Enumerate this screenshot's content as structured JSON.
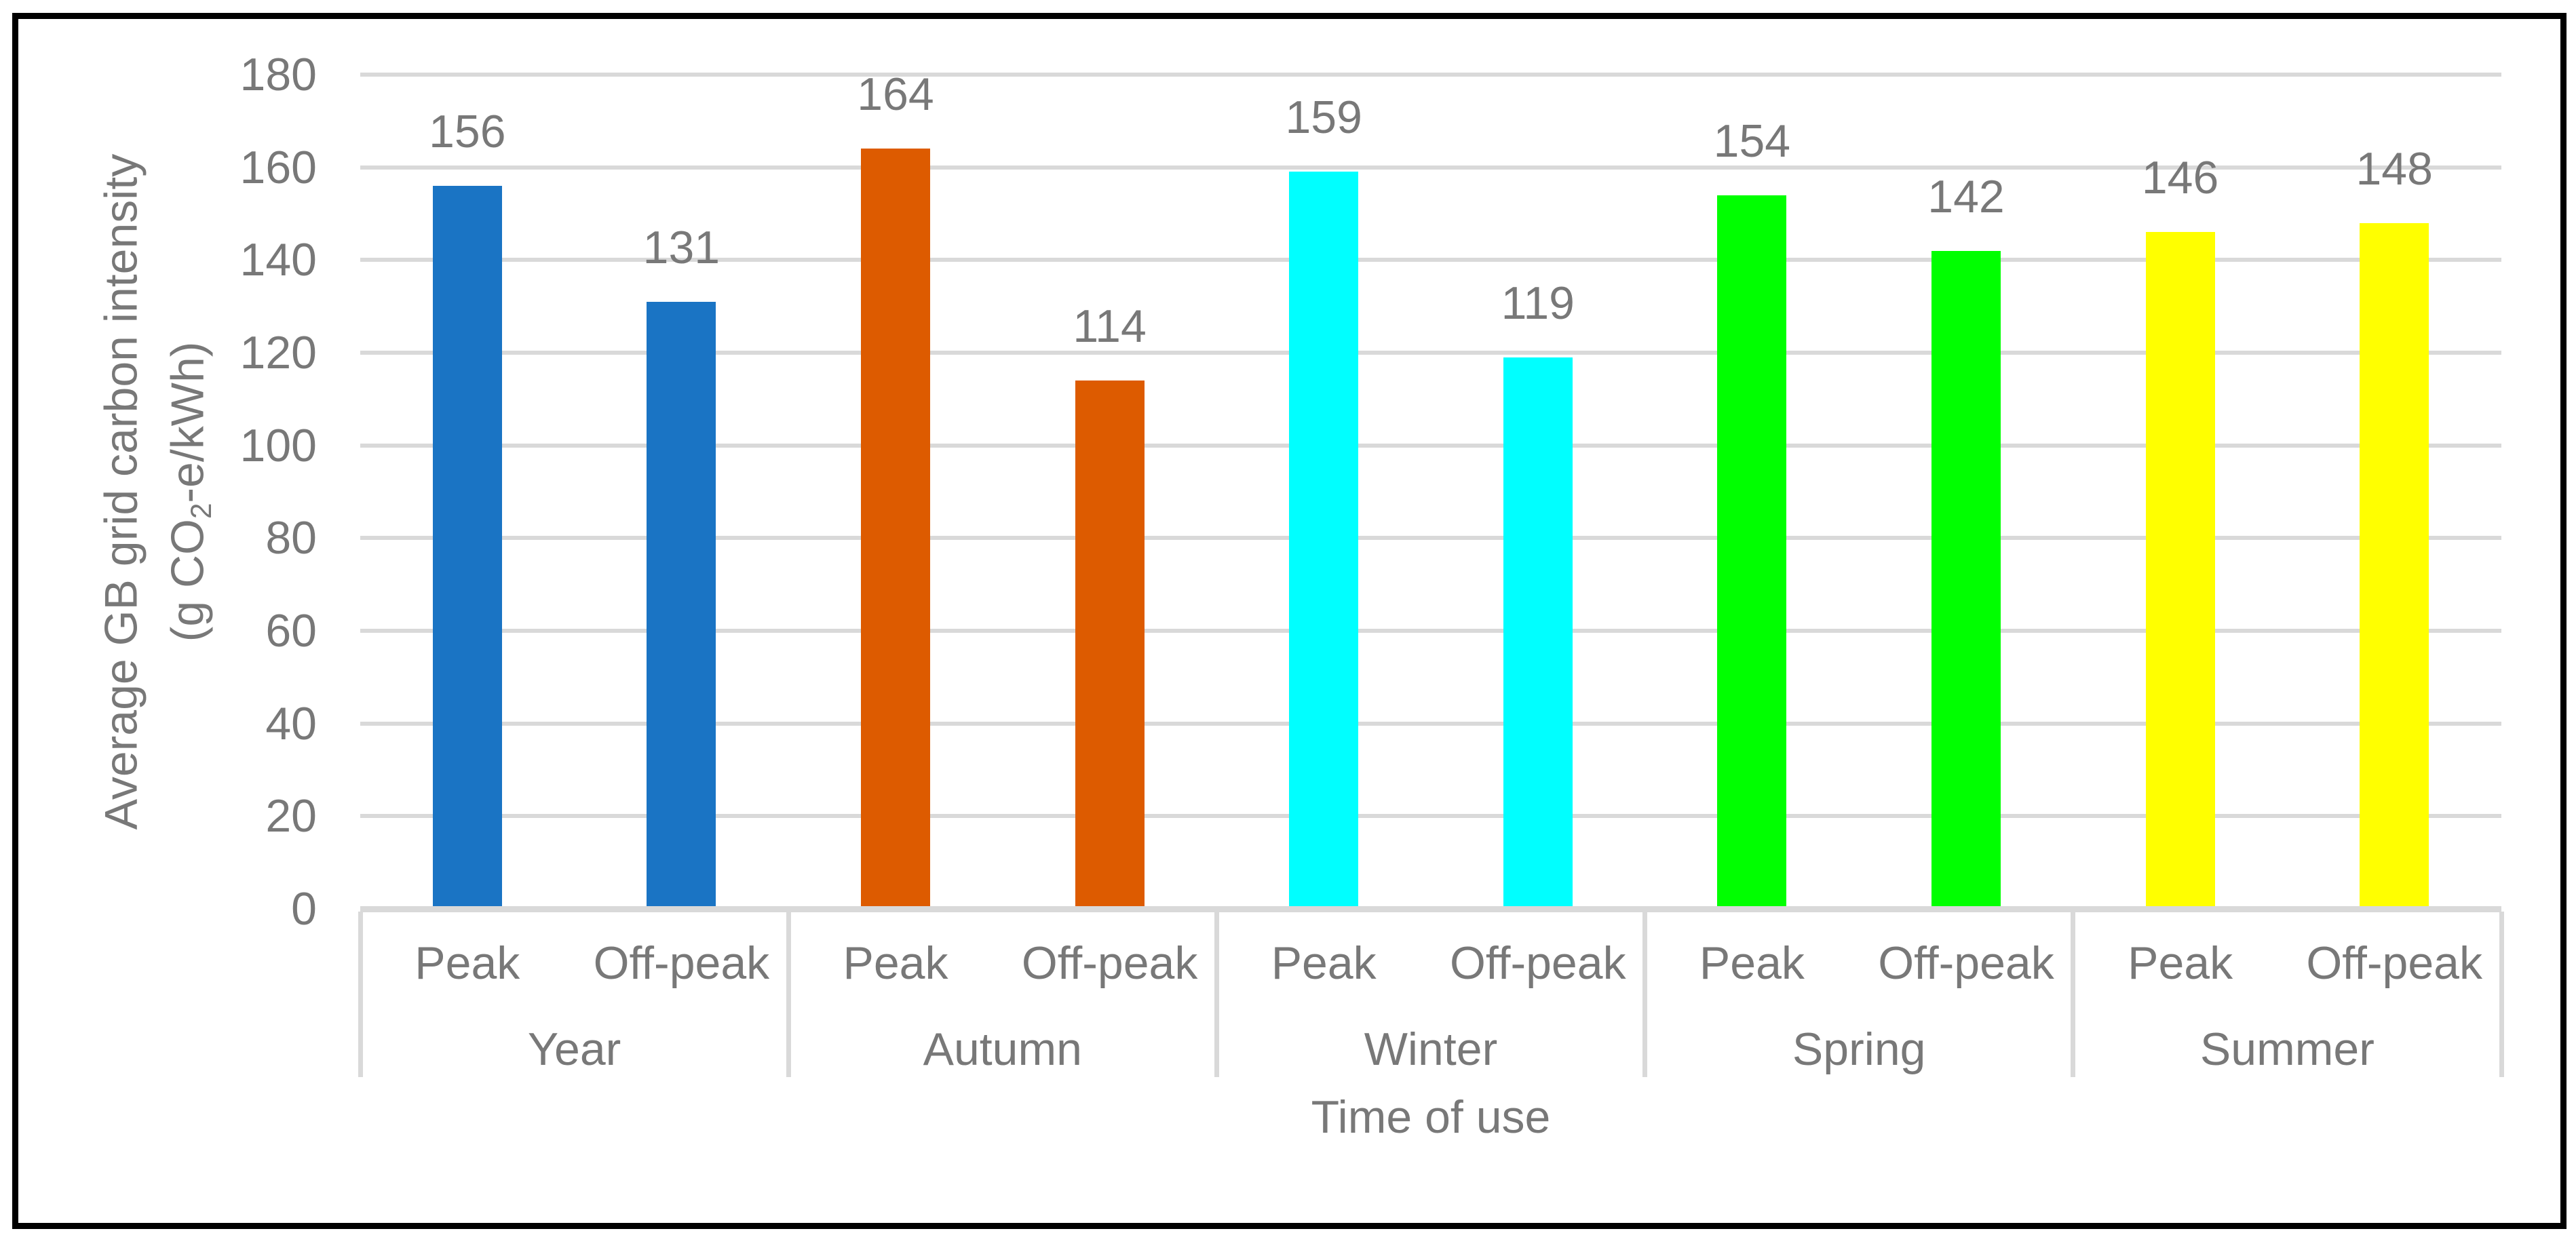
{
  "chart_data": {
    "type": "bar",
    "title": "",
    "y_axis": {
      "label_line1": "Average GB grid carbon intensity",
      "label_line2_pre": "(g CO",
      "label_line2_sub": "2",
      "label_line2_post": "-e/kWh)",
      "min": 0,
      "max": 180,
      "tick_step": 20,
      "ticks": [
        0,
        20,
        40,
        60,
        80,
        100,
        120,
        140,
        160,
        180
      ]
    },
    "x_axis": {
      "label": "Time of use",
      "series_labels": [
        "Peak",
        "Off-peak"
      ]
    },
    "grid": true,
    "legend": false,
    "groups": [
      {
        "label": "Year",
        "color": "#1A74C4",
        "bars": [
          {
            "label": "Peak",
            "value": 156
          },
          {
            "label": "Off-peak",
            "value": 131
          }
        ]
      },
      {
        "label": "Autumn",
        "color": "#DD5B00",
        "bars": [
          {
            "label": "Peak",
            "value": 164
          },
          {
            "label": "Off-peak",
            "value": 114
          }
        ]
      },
      {
        "label": "Winter",
        "color": "#00FFFF",
        "bars": [
          {
            "label": "Peak",
            "value": 159
          },
          {
            "label": "Off-peak",
            "value": 119
          }
        ]
      },
      {
        "label": "Spring",
        "color": "#00FF00",
        "bars": [
          {
            "label": "Peak",
            "value": 154
          },
          {
            "label": "Off-peak",
            "value": 142
          }
        ]
      },
      {
        "label": "Summer",
        "color": "#FFFF00",
        "bars": [
          {
            "label": "Peak",
            "value": 146
          },
          {
            "label": "Off-peak",
            "value": 148
          }
        ]
      }
    ],
    "colors": {
      "text": "#787878",
      "gridline": "#D9D9D9",
      "axis_line": "#D9D9D9",
      "divider": "#D9D9D9",
      "border": "#000000",
      "background": "#FFFFFF"
    }
  }
}
